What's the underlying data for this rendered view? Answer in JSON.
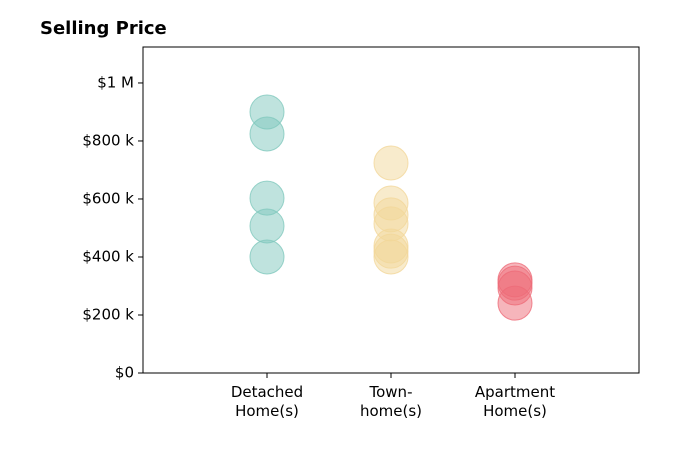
{
  "chart_data": {
    "type": "strip",
    "title": "Selling Price",
    "categories": [
      [
        "Detached",
        "Home(s)"
      ],
      [
        "Town-",
        "home(s)"
      ],
      [
        "Apartment",
        "Home(s)"
      ]
    ],
    "values": [
      [
        900000,
        824000,
        603000,
        507000,
        400000
      ],
      [
        724000,
        586000,
        545000,
        514000,
        438000,
        420000,
        400000
      ],
      [
        321000,
        310000,
        293000,
        241000
      ]
    ],
    "colors": [
      "#7fc8bd",
      "#f2d79a",
      "#ee6b78"
    ],
    "ylim": [
      0,
      1124000
    ],
    "yticks": [
      {
        "value": 0,
        "label": "$0"
      },
      {
        "value": 200000,
        "label": "$200 k"
      },
      {
        "value": 400000,
        "label": "$400 k"
      },
      {
        "value": 600000,
        "label": "$600 k"
      },
      {
        "value": 800000,
        "label": "$800 k"
      },
      {
        "value": 1000000,
        "label": "$1 M"
      }
    ]
  }
}
